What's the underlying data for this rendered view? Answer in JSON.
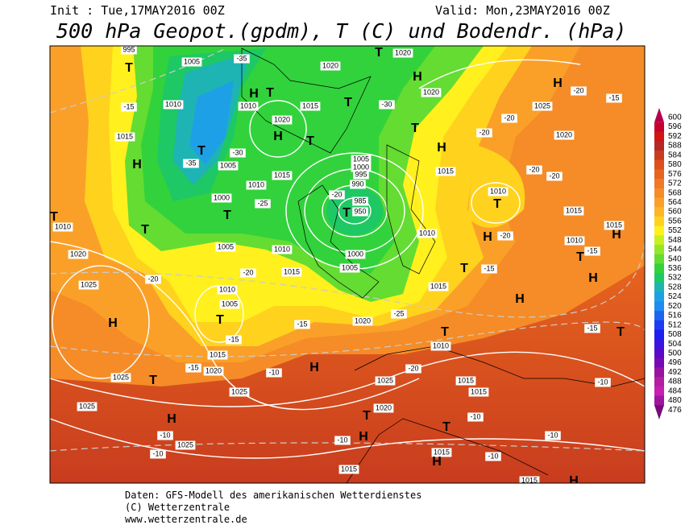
{
  "header": {
    "init": "Init : Tue,17MAY2016 00Z",
    "valid": "Valid: Mon,23MAY2016 00Z",
    "title": "500 hPa Geopot.(gpdm), T (C) und Bodendr. (hPa)"
  },
  "colorbar": {
    "levels": [
      600,
      596,
      592,
      588,
      584,
      580,
      576,
      572,
      568,
      564,
      560,
      556,
      552,
      548,
      544,
      540,
      536,
      532,
      528,
      524,
      520,
      516,
      512,
      508,
      504,
      500,
      496,
      492,
      488,
      484,
      480,
      476
    ],
    "colors": [
      "#b4004b",
      "#c8002d",
      "#d21414",
      "#b42828",
      "#c83c1e",
      "#dc501e",
      "#e6641e",
      "#f07828",
      "#f58c28",
      "#faa028",
      "#ffb428",
      "#ffd21e",
      "#fff01e",
      "#c8f01e",
      "#96e628",
      "#64dc32",
      "#32d23c",
      "#1ec864",
      "#1eb4b4",
      "#1ea0e6",
      "#1e8cf0",
      "#1e64f0",
      "#1e3cf0",
      "#1e1ef0",
      "#3c14dc",
      "#5a0ac8",
      "#780ab4",
      "#9614a0",
      "#b41ea0",
      "#c81eb4",
      "#a014a0",
      "#780a78"
    ]
  },
  "map": {
    "labels": [
      "995",
      "1005",
      "-35",
      "1020",
      "T",
      "1020",
      "T",
      "H",
      "H",
      "-20",
      "-15",
      "1010",
      "1010",
      "H",
      "T",
      "1015",
      "T",
      "-30",
      "1020",
      "1025",
      "-15",
      "-20",
      "1020",
      "1020",
      "1015",
      "H",
      "T",
      "T",
      "H",
      "-20",
      "H",
      "T",
      "-30",
      "-35",
      "1005",
      "1005",
      "1000",
      "995",
      "990",
      "1015",
      "1015",
      "-20",
      "-20",
      "1010",
      "-20",
      "985",
      "950",
      "T",
      "1000",
      "-25",
      "T",
      "1010",
      "T",
      "1015",
      "-20",
      "H",
      "1010",
      "1010",
      "T",
      "T",
      "1005",
      "1010",
      "1020",
      "1000",
      "1010",
      "H",
      "1015",
      "-15",
      "T",
      "1005",
      "1015",
      "-20",
      "T",
      "-15",
      "H",
      "1025",
      "-20",
      "1015",
      "1010",
      "1005",
      "T",
      "H",
      "-15",
      "1020",
      "-25",
      "T",
      "H",
      "-15",
      "T",
      "1010",
      "-15",
      "1015",
      "H",
      "-15",
      "1020",
      "-10",
      "-20",
      "1025",
      "T",
      "1025",
      "1015",
      "-10",
      "1025",
      "1015",
      "1025",
      "H",
      "1020",
      "T",
      "-10",
      "T",
      "-10",
      "H",
      "1025",
      "-10",
      "-10",
      "1015",
      "-10",
      "H",
      "1015",
      "-10",
      "1015",
      "H"
    ]
  },
  "footer": {
    "line1": "Daten: GFS-Modell des amerikanischen Wetterdienstes",
    "line2": "(C) Wetterzentrale",
    "line3": "www.wetterzentrale.de"
  }
}
